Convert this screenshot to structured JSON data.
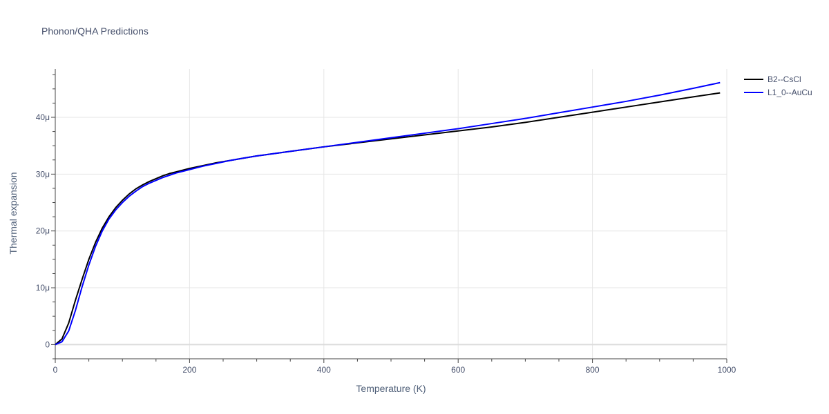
{
  "chart_data": {
    "type": "line",
    "title": "Phonon/QHA Predictions",
    "xlabel": "Temperature (K)",
    "ylabel": "Thermal expansion",
    "xlim": [
      0,
      1000
    ],
    "ylim": [
      -2.5e-06,
      4.85e-05
    ],
    "x_ticks": [
      0,
      200,
      400,
      600,
      800,
      1000
    ],
    "x_tick_labels": [
      "0",
      "200",
      "400",
      "600",
      "800",
      "1000"
    ],
    "y_ticks": [
      0,
      1e-05,
      2e-05,
      3e-05,
      4e-05
    ],
    "y_tick_labels": [
      "0",
      "10μ",
      "20μ",
      "30μ",
      "40μ"
    ],
    "grid": true,
    "legend_position": "top-right",
    "series": [
      {
        "name": "B2--CsCl",
        "color": "#000000",
        "x": [
          0,
          10,
          20,
          30,
          40,
          50,
          60,
          70,
          80,
          90,
          100,
          110,
          120,
          130,
          140,
          150,
          160,
          170,
          180,
          190,
          200,
          220,
          240,
          260,
          280,
          300,
          350,
          400,
          450,
          500,
          550,
          600,
          650,
          700,
          750,
          800,
          850,
          900,
          950,
          990
        ],
        "y": [
          0,
          1e-06,
          3.8e-06,
          7.8e-06,
          1.15e-05,
          1.5e-05,
          1.8e-05,
          2.05e-05,
          2.25e-05,
          2.41e-05,
          2.54e-05,
          2.65e-05,
          2.74e-05,
          2.81e-05,
          2.87e-05,
          2.92e-05,
          2.97e-05,
          3.01e-05,
          3.04e-05,
          3.07e-05,
          3.1e-05,
          3.15e-05,
          3.2e-05,
          3.24e-05,
          3.28e-05,
          3.32e-05,
          3.4e-05,
          3.48e-05,
          3.55e-05,
          3.62e-05,
          3.69e-05,
          3.76e-05,
          3.83e-05,
          3.91e-05,
          4e-05,
          4.09e-05,
          4.18e-05,
          4.27e-05,
          4.36e-05,
          4.43e-05
        ]
      },
      {
        "name": "L1_0--AuCu",
        "color": "#0000ff",
        "x": [
          0,
          10,
          20,
          30,
          40,
          50,
          60,
          70,
          80,
          90,
          100,
          110,
          120,
          130,
          140,
          150,
          160,
          170,
          180,
          190,
          200,
          220,
          240,
          260,
          280,
          300,
          350,
          400,
          450,
          500,
          550,
          600,
          650,
          700,
          750,
          800,
          850,
          900,
          950,
          990
        ],
        "y": [
          0,
          5e-07,
          2.4e-06,
          6e-06,
          1.02e-05,
          1.4e-05,
          1.73e-05,
          2e-05,
          2.21e-05,
          2.37e-05,
          2.5e-05,
          2.61e-05,
          2.7e-05,
          2.78e-05,
          2.84e-05,
          2.89e-05,
          2.94e-05,
          2.98e-05,
          3.02e-05,
          3.05e-05,
          3.08e-05,
          3.14e-05,
          3.19e-05,
          3.24e-05,
          3.28e-05,
          3.32e-05,
          3.4e-05,
          3.48e-05,
          3.56e-05,
          3.64e-05,
          3.72e-05,
          3.8e-05,
          3.89e-05,
          3.98e-05,
          4.08e-05,
          4.18e-05,
          4.28e-05,
          4.39e-05,
          4.51e-05,
          4.61e-05
        ]
      }
    ]
  }
}
